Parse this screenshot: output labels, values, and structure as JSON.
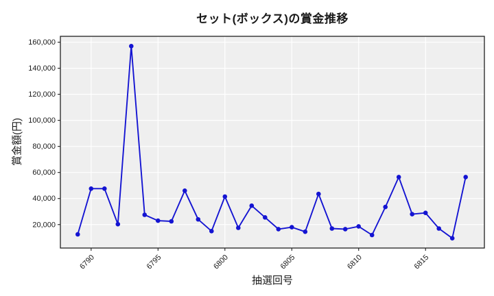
{
  "chart_data": {
    "type": "line",
    "title": "セット(ボックス)の賞金推移",
    "xlabel": "抽選回号",
    "ylabel": "賞金額(円)",
    "x": [
      6789,
      6790,
      6791,
      6792,
      6793,
      6794,
      6795,
      6796,
      6797,
      6798,
      6799,
      6800,
      6801,
      6802,
      6803,
      6804,
      6805,
      6806,
      6807,
      6808,
      6809,
      6810,
      6811,
      6812,
      6813,
      6814,
      6815,
      6816,
      6817,
      6818
    ],
    "values": [
      12500,
      47600,
      47600,
      20300,
      157000,
      27500,
      23000,
      22500,
      46000,
      24000,
      15000,
      41500,
      17500,
      34500,
      25500,
      16500,
      18000,
      14500,
      43500,
      17000,
      16500,
      18600,
      12000,
      33500,
      56500,
      28000,
      29000,
      17000,
      9500,
      56500
    ],
    "x_ticks": [
      6790,
      6795,
      6800,
      6805,
      6810,
      6815
    ],
    "y_ticks": [
      20000,
      40000,
      60000,
      80000,
      100000,
      120000,
      140000,
      160000
    ],
    "y_tick_labels": [
      "20,000",
      "40,000",
      "60,000",
      "80,000",
      "100,000",
      "120,000",
      "140,000",
      "160,000"
    ],
    "xlim": [
      6787.7,
      6819.4
    ],
    "ylim": [
      2000,
      164500
    ],
    "grid": true,
    "legend": "none",
    "colors": {
      "line": "#1414d2",
      "marker": "#1414d2",
      "plot_bg": "#efefef",
      "grid": "#ffffff",
      "spine": "#1f1f1f",
      "figure_bg": "#ffffff",
      "text": "#1a1a1a"
    }
  }
}
